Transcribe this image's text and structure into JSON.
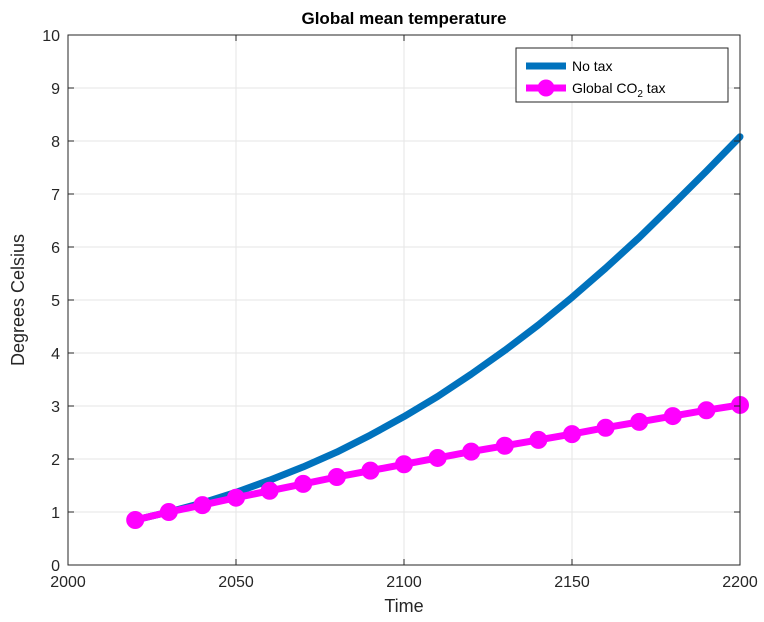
{
  "chart_data": {
    "type": "line",
    "title": "Global mean temperature",
    "xlabel": "Time",
    "ylabel": "Degrees Celsius",
    "xlim": [
      2000,
      2200
    ],
    "ylim": [
      0,
      10
    ],
    "xticks": [
      2000,
      2050,
      2100,
      2150,
      2200
    ],
    "yticks": [
      0,
      1,
      2,
      3,
      4,
      5,
      6,
      7,
      8,
      9,
      10
    ],
    "grid": true,
    "legend_position": "top-right",
    "series": [
      {
        "name": "No tax",
        "color": "#0072BD",
        "marker": "none",
        "x": [
          2020,
          2030,
          2040,
          2050,
          2060,
          2070,
          2080,
          2090,
          2100,
          2110,
          2120,
          2130,
          2140,
          2150,
          2160,
          2170,
          2180,
          2190,
          2200
        ],
        "y": [
          0.85,
          1.0,
          1.17,
          1.37,
          1.6,
          1.85,
          2.13,
          2.45,
          2.8,
          3.18,
          3.6,
          4.05,
          4.53,
          5.05,
          5.6,
          6.18,
          6.8,
          7.43,
          8.08
        ]
      },
      {
        "name": "Global CO2 tax",
        "name_parts": {
          "prefix": "Global CO",
          "sub": "2",
          "suffix": " tax"
        },
        "color": "#FF00FF",
        "marker": "circle",
        "x": [
          2020,
          2030,
          2040,
          2050,
          2060,
          2070,
          2080,
          2090,
          2100,
          2110,
          2120,
          2130,
          2140,
          2150,
          2160,
          2170,
          2180,
          2190,
          2200
        ],
        "y": [
          0.85,
          1.0,
          1.13,
          1.27,
          1.4,
          1.53,
          1.66,
          1.78,
          1.9,
          2.02,
          2.14,
          2.25,
          2.36,
          2.47,
          2.59,
          2.7,
          2.81,
          2.92,
          3.02
        ]
      }
    ]
  }
}
